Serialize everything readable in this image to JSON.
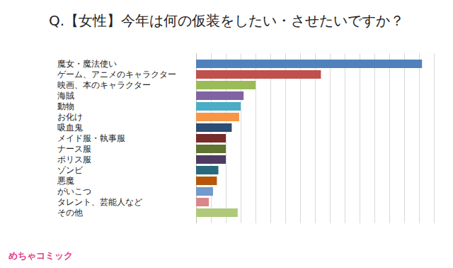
{
  "chart_data": {
    "type": "bar",
    "orientation": "horizontal",
    "title": "Q.【女性】今年は何の仮装をしたい・させたいですか？",
    "categories": [
      "魔女・魔法使い",
      "ゲーム、アニメのキャラクター",
      "映画、本のキャラクター",
      "海賊",
      "動物",
      "お化け",
      "吸血鬼",
      "メイド服・執事服",
      "ナース服",
      "ポリス服",
      "ゾンビ",
      "悪魔",
      "がいこつ",
      "タレント、芸能人など",
      "その他"
    ],
    "values": [
      76,
      42,
      20,
      16,
      15,
      14.5,
      12,
      10,
      10,
      10,
      7.5,
      7,
      5.7,
      4.3,
      14
    ],
    "colors": [
      "#4f81bd",
      "#c0504d",
      "#9bbb59",
      "#8064a2",
      "#4bacc6",
      "#f79646",
      "#2c4d75",
      "#772c2a",
      "#5f7530",
      "#4d3b62",
      "#276a7c",
      "#b65708",
      "#729aca",
      "#d9878a",
      "#afc97a"
    ],
    "xlim": [
      0,
      80
    ],
    "xticks": [
      0,
      5,
      10,
      15,
      20,
      25,
      30,
      35,
      40,
      45,
      50,
      55,
      60,
      65,
      70,
      75,
      80
    ],
    "grid": true,
    "tick_labels": "y",
    "annotations": [
      "めちゃコミック"
    ]
  }
}
